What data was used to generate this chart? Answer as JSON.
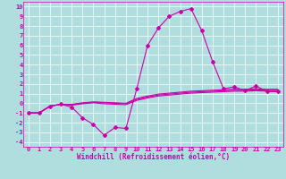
{
  "xlabel": "Windchill (Refroidissement éolien,°C)",
  "background_color": "#b0dede",
  "grid_color": "#ffffff",
  "line_color": "#cc00aa",
  "x": [
    0,
    1,
    2,
    3,
    4,
    5,
    6,
    7,
    8,
    9,
    10,
    11,
    12,
    13,
    14,
    15,
    16,
    17,
    18,
    19,
    20,
    21,
    22,
    23
  ],
  "y_main": [
    -1.0,
    -1.0,
    -0.3,
    -0.1,
    -0.4,
    -1.5,
    -2.2,
    -3.3,
    -2.5,
    -2.6,
    1.5,
    6.0,
    7.8,
    9.0,
    9.5,
    9.8,
    7.5,
    4.3,
    1.5,
    1.7,
    1.3,
    1.8,
    1.2,
    1.2
  ],
  "y_line2": [
    -1.0,
    -1.0,
    -0.3,
    -0.1,
    -0.2,
    -0.05,
    0.05,
    -0.05,
    -0.1,
    -0.15,
    0.3,
    0.55,
    0.75,
    0.85,
    0.95,
    1.05,
    1.1,
    1.15,
    1.2,
    1.25,
    1.25,
    1.3,
    1.25,
    1.25
  ],
  "y_line3": [
    -1.0,
    -1.0,
    -0.3,
    -0.1,
    -0.15,
    0.0,
    0.1,
    0.05,
    0.0,
    -0.05,
    0.4,
    0.65,
    0.85,
    0.95,
    1.05,
    1.15,
    1.2,
    1.25,
    1.3,
    1.35,
    1.35,
    1.4,
    1.35,
    1.35
  ],
  "y_line4": [
    -1.0,
    -1.0,
    -0.3,
    -0.1,
    -0.1,
    0.05,
    0.15,
    0.1,
    0.05,
    0.0,
    0.5,
    0.75,
    0.95,
    1.05,
    1.15,
    1.25,
    1.3,
    1.35,
    1.4,
    1.45,
    1.45,
    1.5,
    1.45,
    1.45
  ],
  "ylim": [
    -4.5,
    10.5
  ],
  "xlim": [
    -0.5,
    23.5
  ],
  "yticks": [
    -4,
    -3,
    -2,
    -1,
    0,
    1,
    2,
    3,
    4,
    5,
    6,
    7,
    8,
    9,
    10
  ],
  "xticks": [
    0,
    1,
    2,
    3,
    4,
    5,
    6,
    7,
    8,
    9,
    10,
    11,
    12,
    13,
    14,
    15,
    16,
    17,
    18,
    19,
    20,
    21,
    22,
    23
  ],
  "marker": "D",
  "marker_size": 2.0,
  "line_width": 0.8,
  "tick_fontsize": 5.0,
  "label_fontsize": 5.5
}
